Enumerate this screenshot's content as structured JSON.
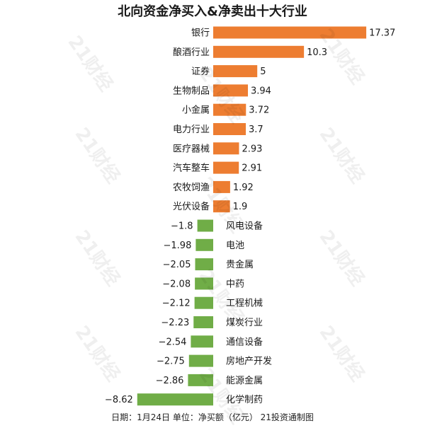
{
  "title": "北向资金净买入&净卖出十大行业",
  "footer": "日期：1月24日 单位：净买额（亿元） 21投资通制图",
  "watermark": "21财经",
  "colors": {
    "positive": "#ED7D31",
    "negative": "#70AD47"
  },
  "chart_data": {
    "type": "bar",
    "orientation": "horizontal",
    "title": "北向资金净买入&净卖出十大行业",
    "categories": [
      "银行",
      "酿酒行业",
      "证券",
      "生物制品",
      "小金属",
      "电力行业",
      "医疗器械",
      "汽车整车",
      "农牧饲渔",
      "光伏设备",
      "风电设备",
      "电池",
      "贵金属",
      "中药",
      "工程机械",
      "煤炭行业",
      "通信设备",
      "房地产开发",
      "能源金属",
      "化学制药"
    ],
    "values": [
      17.37,
      10.3,
      5,
      3.94,
      3.72,
      3.7,
      2.93,
      2.91,
      1.92,
      1.9,
      -1.8,
      -1.98,
      -2.05,
      -2.08,
      -2.12,
      -2.23,
      -2.54,
      -2.75,
      -2.86,
      -8.62
    ],
    "value_labels": [
      "17.37",
      "10.3",
      "5",
      "3.94",
      "3.72",
      "3.7",
      "2.93",
      "2.91",
      "1.92",
      "1.9",
      "−1.8",
      "−1.98",
      "−2.05",
      "−2.08",
      "−2.12",
      "−2.23",
      "−2.54",
      "−2.75",
      "−2.86",
      "−8.62"
    ],
    "unit": "亿元",
    "grid": false,
    "legend": "none"
  }
}
